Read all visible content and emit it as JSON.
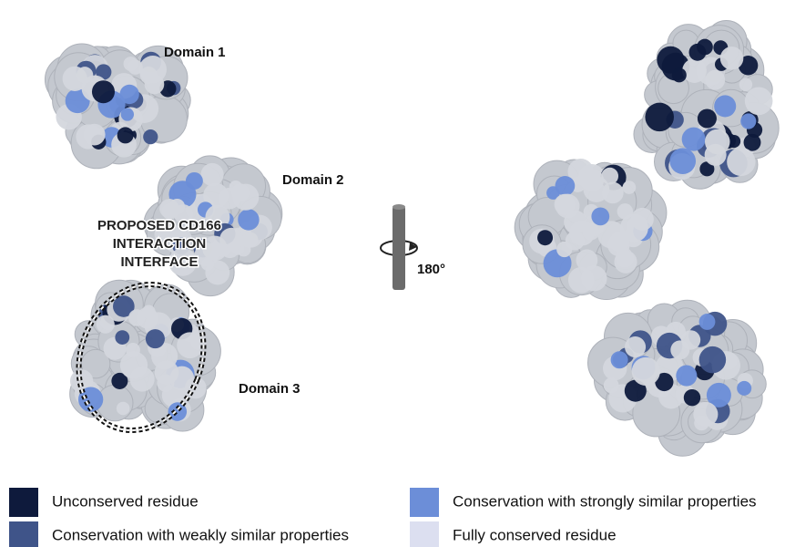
{
  "labels": {
    "domain1": "Domain 1",
    "domain2": "Domain 2",
    "domain3": "Domain 3"
  },
  "annotation": [
    "PROPOSED CD166",
    "INTERACTION",
    "INTERFACE"
  ],
  "rotation": "180°",
  "legend": [
    {
      "label": "Unconserved residue",
      "color": "#0e1a3c"
    },
    {
      "label": "Conservation with weakly similar properties",
      "color": "#3f5489"
    },
    {
      "label": "Conservation with strongly similar properties",
      "color": "#6c8ed8"
    },
    {
      "label": "Fully conserved residue",
      "color": "#dcdff0"
    }
  ]
}
